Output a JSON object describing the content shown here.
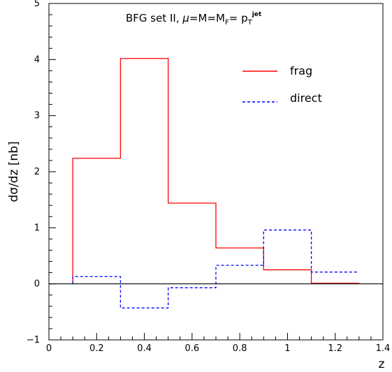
{
  "chart_data": {
    "type": "line",
    "title": {
      "prefix": "BFG set II, ",
      "mu": "μ",
      "eq1": "=M=M",
      "sub_f": "F",
      "eq2": "= p",
      "sub_t": "T",
      "sup_jet": "jet"
    },
    "xlabel": "z",
    "ylabel": "dσ/dz [nb]",
    "xlim": [
      0,
      1.4
    ],
    "ylim": [
      -1,
      5
    ],
    "x_ticks": [
      "0",
      "0.2",
      "0.4",
      "0.6",
      "0.8",
      "1",
      "1.2",
      "1.4"
    ],
    "y_ticks": [
      "−1",
      "0",
      "1",
      "2",
      "3",
      "4",
      "5"
    ],
    "bin_edges": [
      0.1,
      0.3,
      0.5,
      0.7,
      0.9,
      1.1,
      1.3
    ],
    "series": [
      {
        "name": "frag",
        "color": "#ff0000",
        "style": "solid",
        "values": [
          2.24,
          4.02,
          1.44,
          0.64,
          0.25,
          0.01
        ]
      },
      {
        "name": "direct",
        "color": "#0000ff",
        "style": "dashed",
        "values": [
          0.13,
          -0.43,
          -0.07,
          0.33,
          0.96,
          0.21
        ]
      }
    ],
    "zero_line": true,
    "legend_position": "top-right",
    "grid": false
  }
}
